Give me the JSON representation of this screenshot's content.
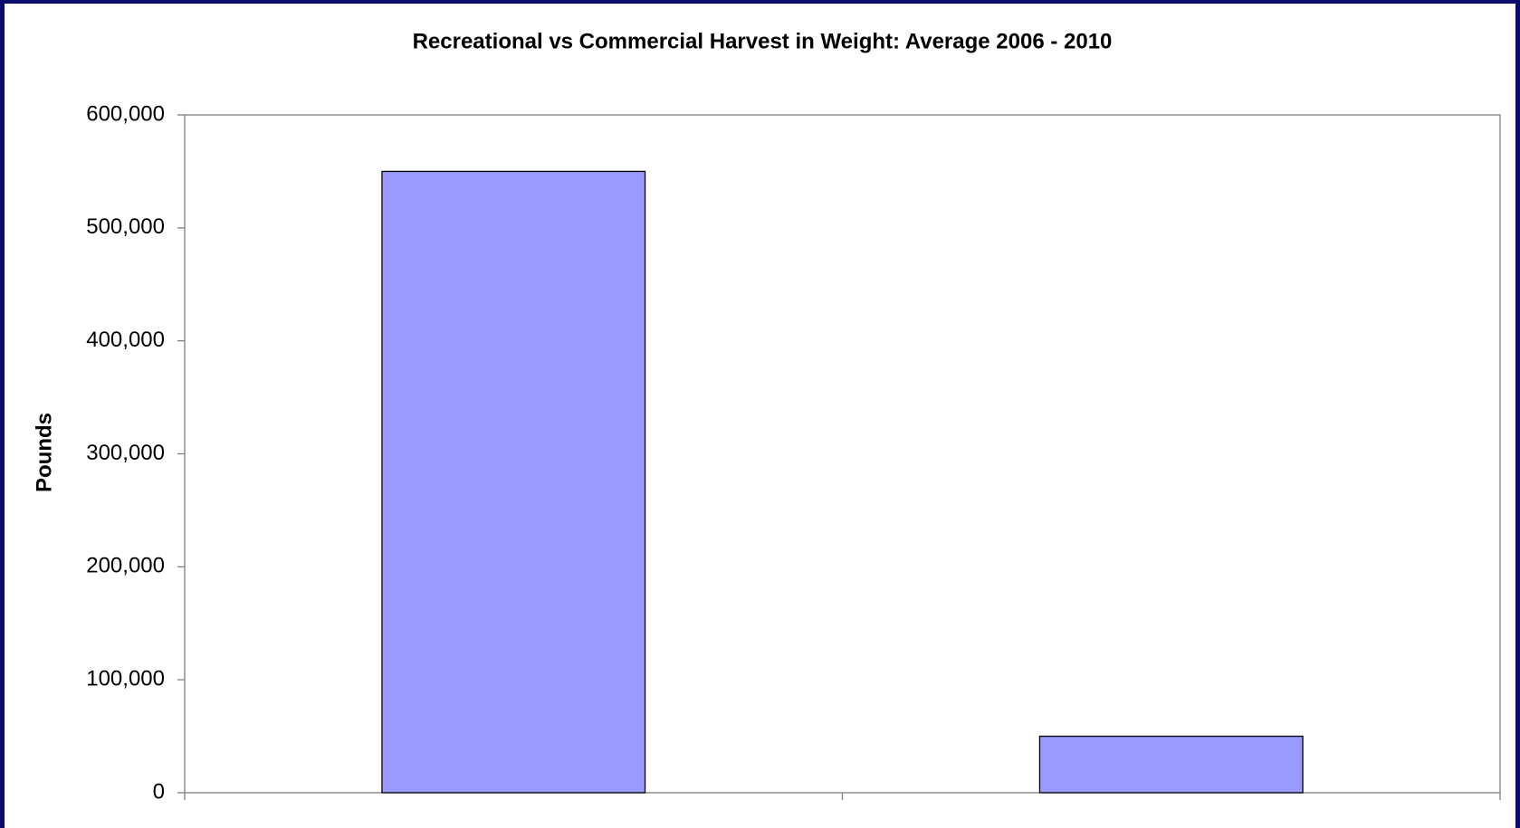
{
  "chart_data": {
    "type": "bar",
    "title": "Recreational vs Commercial Harvest in Weight: Average 2006 - 2010",
    "y_label": "Pounds",
    "categories": [
      null,
      null
    ],
    "values": [
      550000,
      50000
    ],
    "color": "#9999ff",
    "ylim": [
      0,
      600000
    ],
    "yticks": [
      0,
      {
        "value": 100000,
        "label": "100,000"
      },
      {
        "value": 200000,
        "label": "200,000"
      },
      {
        "value": 300000,
        "label": "300,000"
      },
      {
        "value": 400000,
        "label": "400,000"
      },
      {
        "value": 500000,
        "label": "500,000"
      },
      {
        "value": 600000,
        "label": "600,000"
      }
    ],
    "grid": false
  }
}
